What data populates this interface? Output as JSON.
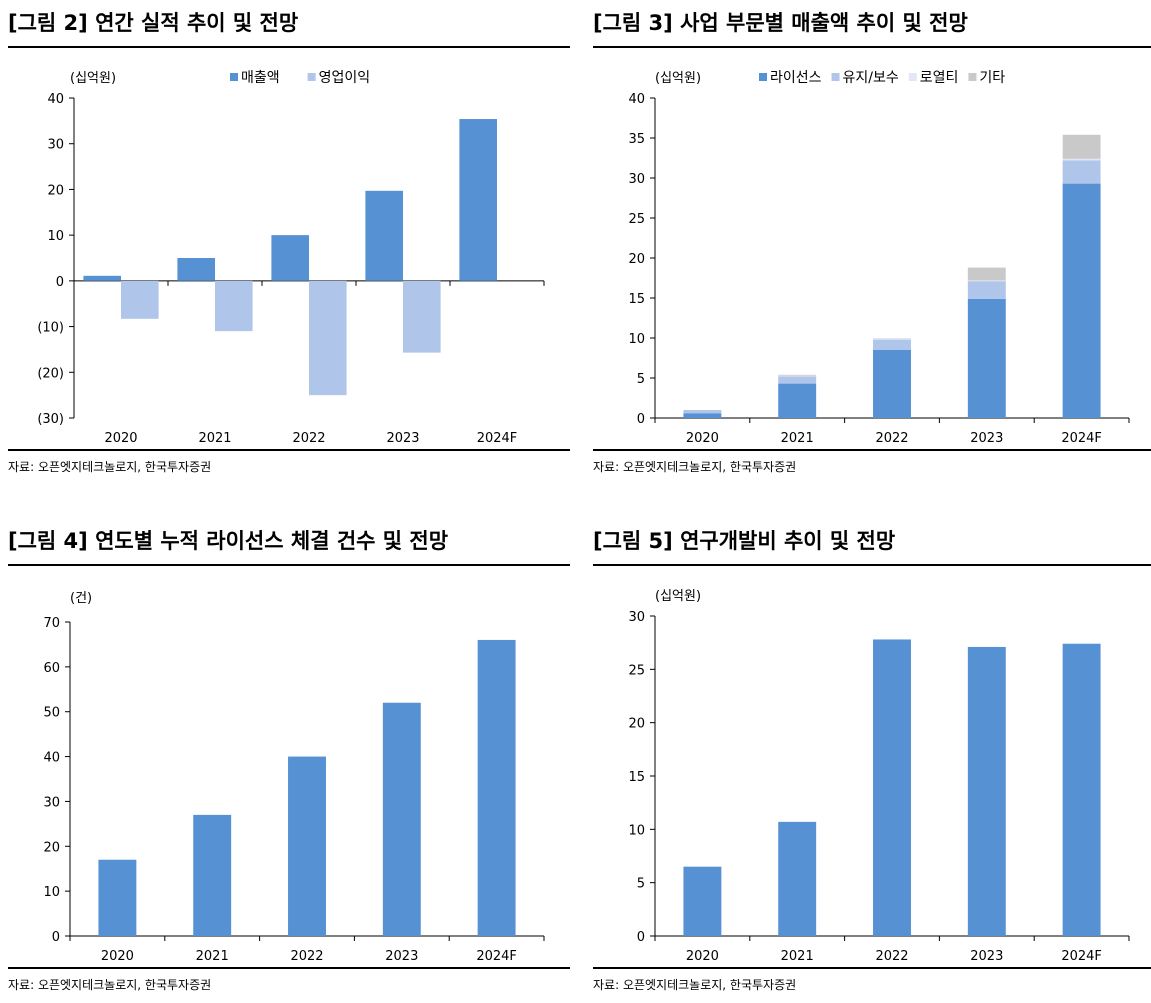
{
  "colors": {
    "primary": "#5591d3",
    "secondary": "#afc5ea",
    "tertiary": "#e2e6f5",
    "quaternary": "#c9c9c9"
  },
  "panels": [
    {
      "title": "[그림 2] 연간 실적 추이 및 전망",
      "unit": "(십억원)",
      "source": "자료: 오픈엣지테크놀로지, 한국투자증권"
    },
    {
      "title": "[그림 3] 사업 부문별 매출액 추이 및 전망",
      "unit": "(십억원)",
      "source": "자료: 오픈엣지테크놀로지, 한국투자증권"
    },
    {
      "title": "[그림 4] 연도별 누적 라이선스 체결 건수 및 전망",
      "unit": "(건)",
      "source": "자료: 오픈엣지테크놀로지, 한국투자증권"
    },
    {
      "title": "[그림 5] 연구개발비 추이 및 전망",
      "unit": "(십억원)",
      "source": "자료: 오픈엣지테크놀로지, 한국투자증권"
    }
  ],
  "chart_data": [
    {
      "type": "bar",
      "categories": [
        "2020",
        "2021",
        "2022",
        "2023",
        "2024F"
      ],
      "series": [
        {
          "name": "매출액",
          "values": [
            1.1,
            5.0,
            10.0,
            19.7,
            35.4
          ]
        },
        {
          "name": "영업이익",
          "values": [
            -8.3,
            -11.0,
            -25.0,
            -15.7,
            null
          ]
        }
      ],
      "ylim": [
        -30,
        40
      ],
      "yticks": [
        40,
        30,
        20,
        10,
        0,
        -10,
        -20,
        -30
      ],
      "yticklabels": [
        "40",
        "30",
        "20",
        "10",
        "0",
        "(10)",
        "(20)",
        "(30)"
      ],
      "legend": "top",
      "grid": false
    },
    {
      "type": "bar",
      "stacked": true,
      "categories": [
        "2020",
        "2021",
        "2022",
        "2023",
        "2024F"
      ],
      "series": [
        {
          "name": "라이선스",
          "values": [
            0.6,
            4.3,
            8.5,
            14.9,
            29.3
          ]
        },
        {
          "name": "유지/보수",
          "values": [
            0.4,
            0.9,
            1.3,
            2.2,
            2.9
          ]
        },
        {
          "name": "로열티",
          "values": [
            0.0,
            0.1,
            0.2,
            0.1,
            0.2
          ]
        },
        {
          "name": "기타",
          "values": [
            0.0,
            0.1,
            0.0,
            1.6,
            3.0
          ]
        }
      ],
      "ylim": [
        0,
        40
      ],
      "yticks": [
        40,
        35,
        30,
        25,
        20,
        15,
        10,
        5,
        0
      ],
      "yticklabels": [
        "40",
        "35",
        "30",
        "25",
        "20",
        "15",
        "10",
        "5",
        "0"
      ],
      "legend": "top",
      "grid": false
    },
    {
      "type": "bar",
      "categories": [
        "2020",
        "2021",
        "2022",
        "2023",
        "2024F"
      ],
      "series": [
        {
          "values": [
            17,
            27,
            40,
            52,
            66
          ]
        }
      ],
      "ylim": [
        0,
        70
      ],
      "yticks": [
        70,
        60,
        50,
        40,
        30,
        20,
        10,
        0
      ],
      "yticklabels": [
        "70",
        "60",
        "50",
        "40",
        "30",
        "20",
        "10",
        "0"
      ],
      "grid": false
    },
    {
      "type": "bar",
      "categories": [
        "2020",
        "2021",
        "2022",
        "2023",
        "2024F"
      ],
      "series": [
        {
          "values": [
            6.5,
            10.7,
            27.8,
            27.1,
            27.4
          ]
        }
      ],
      "ylim": [
        0,
        30
      ],
      "yticks": [
        30,
        25,
        20,
        15,
        10,
        5,
        0
      ],
      "yticklabels": [
        "30",
        "25",
        "20",
        "15",
        "10",
        "5",
        "0"
      ],
      "grid": false
    }
  ]
}
